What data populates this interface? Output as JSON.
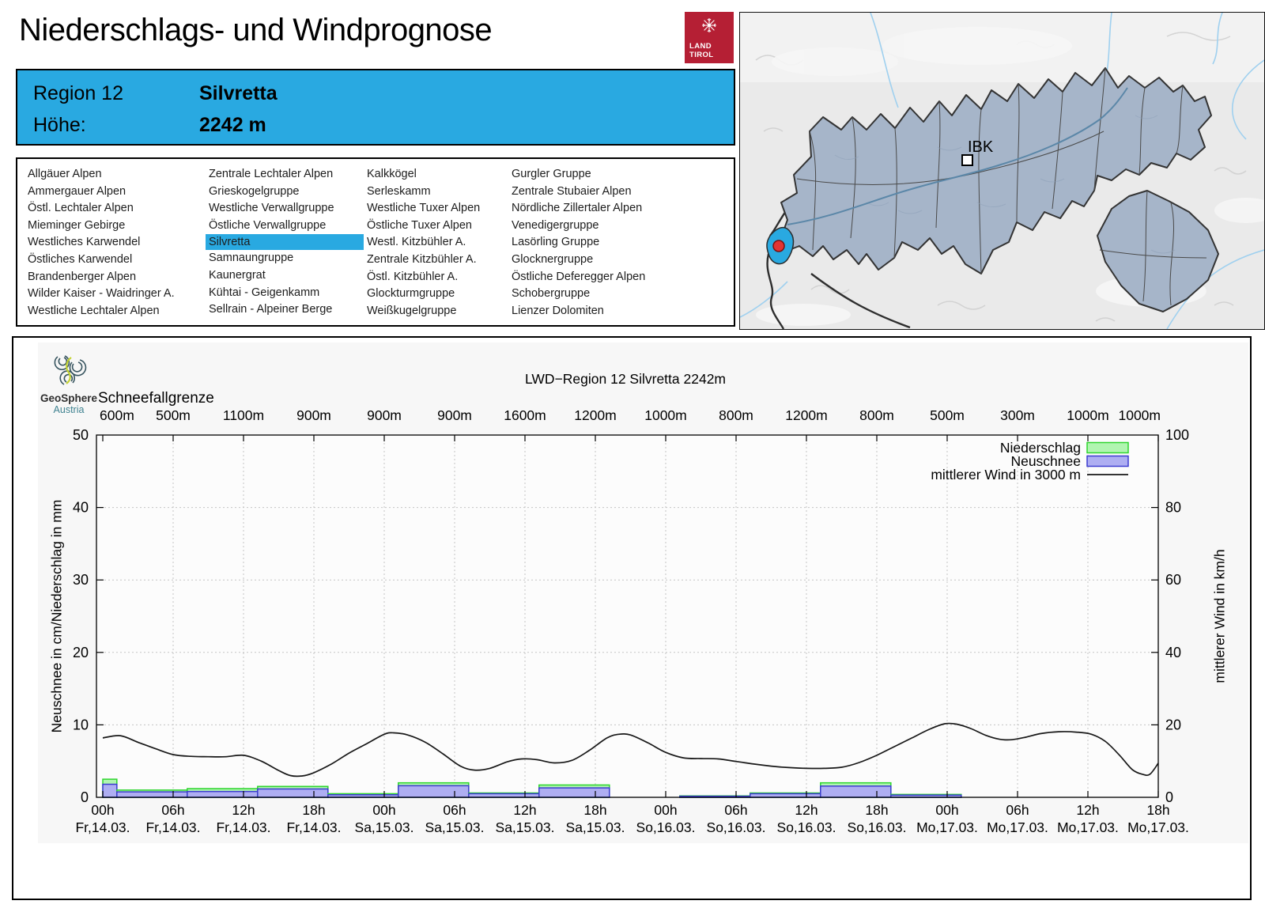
{
  "header": {
    "title": "Niederschlags- und Windprognose",
    "logo_line1": "LAND",
    "logo_line2": "TIROL"
  },
  "region_box": {
    "region_label": "Region 12",
    "region_name": "Silvretta",
    "altitude_label": "Höhe:",
    "altitude_value": "2242 m"
  },
  "region_list": {
    "selected": "Silvretta",
    "columns": [
      [
        "Allgäuer Alpen",
        "Ammergauer Alpen",
        "Östl. Lechtaler Alpen",
        "Mieminger Gebirge",
        "Westliches Karwendel",
        "Östliches Karwendel",
        "Brandenberger Alpen",
        "Wilder Kaiser - Waidringer A.",
        "Westliche Lechtaler Alpen"
      ],
      [
        "Zentrale Lechtaler Alpen",
        "Grieskogelgruppe",
        "Westliche Verwallgruppe",
        "Östliche Verwallgruppe",
        "Silvretta",
        "Samnaungruppe",
        "Kaunergrat",
        "Kühtai - Geigenkamm",
        "Sellrain - Alpeiner Berge"
      ],
      [
        "Kalkkögel",
        "Serleskamm",
        "Westliche Tuxer Alpen",
        "Östliche Tuxer Alpen",
        "Westl. Kitzbühler A.",
        "Zentrale Kitzbühler A.",
        "Östl. Kitzbühler A.",
        "Glockturmgruppe",
        "Weißkugelgruppe"
      ],
      [
        "Gurgler Gruppe",
        "Zentrale Stubaier Alpen",
        "Nördliche Zillertaler Alpen",
        "Venedigergruppe",
        "Lasörling Gruppe",
        "Glocknergruppe",
        "Östliche Deferegger Alpen",
        "Schobergruppe",
        "Lienzer Dolomiten"
      ]
    ]
  },
  "map": {
    "marker_label": "IBK",
    "highlight_color": "#29a9e1",
    "region_fill": "#a6b5c9"
  },
  "colors": {
    "accent_blue": "#29a9e1",
    "tirol_red": "#b51f34",
    "precip_fill": "#b0f5b0",
    "precip_border": "#2ed52e",
    "snow_fill": "#aeaef2",
    "snow_border": "#3c3cd0",
    "wind_line": "#181818"
  },
  "chart_data": {
    "type": "bar+line",
    "title": "LWD−Region 12 Silvretta 2242m",
    "branding_name": "GeoSphere",
    "branding_sub": "Austria",
    "snowline_label": "Schneefallgrenze",
    "snowline_values": [
      "600m",
      "500m",
      "1100m",
      "900m",
      "900m",
      "900m",
      "1600m",
      "1200m",
      "1000m",
      "800m",
      "1200m",
      "800m",
      "500m",
      "300m",
      "1000m",
      "1000m"
    ],
    "x_ticks": [
      {
        "hour": "00h",
        "date": "Fr,14.03."
      },
      {
        "hour": "06h",
        "date": "Fr,14.03."
      },
      {
        "hour": "12h",
        "date": "Fr,14.03."
      },
      {
        "hour": "18h",
        "date": "Fr,14.03."
      },
      {
        "hour": "00h",
        "date": "Sa,15.03."
      },
      {
        "hour": "06h",
        "date": "Sa,15.03."
      },
      {
        "hour": "12h",
        "date": "Sa,15.03."
      },
      {
        "hour": "18h",
        "date": "Sa,15.03."
      },
      {
        "hour": "00h",
        "date": "So,16.03."
      },
      {
        "hour": "06h",
        "date": "So,16.03."
      },
      {
        "hour": "12h",
        "date": "So,16.03."
      },
      {
        "hour": "18h",
        "date": "So,16.03."
      },
      {
        "hour": "00h",
        "date": "Mo,17.03."
      },
      {
        "hour": "06h",
        "date": "Mo,17.03."
      },
      {
        "hour": "12h",
        "date": "Mo,17.03."
      },
      {
        "hour": "18h",
        "date": "Mo,17.03."
      }
    ],
    "ylabel_left": "Neuschnee in cm/Niederschlag in mm",
    "ylabel_right": "mittlerer Wind in km/h",
    "ylim_left": [
      0,
      50
    ],
    "yticks_left": [
      0,
      10,
      20,
      30,
      40,
      50
    ],
    "ylim_right": [
      0,
      100
    ],
    "yticks_right": [
      0,
      20,
      40,
      60,
      80,
      100
    ],
    "x_range_hours": [
      0,
      90
    ],
    "grid": "dotted",
    "legend_position": "top-right",
    "legend": [
      {
        "label": "Niederschlag",
        "type": "box"
      },
      {
        "label": "Neuschnee",
        "type": "box"
      },
      {
        "label": "mittlerer Wind in 3000 m",
        "type": "line"
      }
    ],
    "bars": [
      {
        "start_h": 0,
        "end_h": 1.2,
        "niederschlag_mm": 2.5,
        "neuschnee_cm": 1.8
      },
      {
        "start_h": 1.2,
        "end_h": 7.2,
        "niederschlag_mm": 1.0,
        "neuschnee_cm": 0.75
      },
      {
        "start_h": 7.2,
        "end_h": 13.2,
        "niederschlag_mm": 1.2,
        "neuschnee_cm": 0.8
      },
      {
        "start_h": 13.2,
        "end_h": 19.2,
        "niederschlag_mm": 1.5,
        "neuschnee_cm": 1.15
      },
      {
        "start_h": 19.2,
        "end_h": 25.2,
        "niederschlag_mm": 0.5,
        "neuschnee_cm": 0.35
      },
      {
        "start_h": 25.2,
        "end_h": 31.2,
        "niederschlag_mm": 2.0,
        "neuschnee_cm": 1.6
      },
      {
        "start_h": 31.2,
        "end_h": 37.2,
        "niederschlag_mm": 0.6,
        "neuschnee_cm": 0.5
      },
      {
        "start_h": 37.2,
        "end_h": 43.2,
        "niederschlag_mm": 1.7,
        "neuschnee_cm": 1.3
      },
      {
        "start_h": 43.2,
        "end_h": 49.2,
        "niederschlag_mm": 0,
        "neuschnee_cm": 0
      },
      {
        "start_h": 49.2,
        "end_h": 55.2,
        "niederschlag_mm": 0.2,
        "neuschnee_cm": 0.15
      },
      {
        "start_h": 55.2,
        "end_h": 61.2,
        "niederschlag_mm": 0.6,
        "neuschnee_cm": 0.5
      },
      {
        "start_h": 61.2,
        "end_h": 67.2,
        "niederschlag_mm": 2.0,
        "neuschnee_cm": 1.55
      },
      {
        "start_h": 67.2,
        "end_h": 73.2,
        "niederschlag_mm": 0.4,
        "neuschnee_cm": 0.3
      },
      {
        "start_h": 73.2,
        "end_h": 79.2,
        "niederschlag_mm": 0,
        "neuschnee_cm": 0
      },
      {
        "start_h": 79.2,
        "end_h": 90,
        "niederschlag_mm": 0,
        "neuschnee_cm": 0
      }
    ],
    "wind_kmh": [
      [
        0,
        16.4
      ],
      [
        1.5,
        17.0
      ],
      [
        3,
        15.2
      ],
      [
        4.5,
        13.4
      ],
      [
        6,
        11.8
      ],
      [
        7.5,
        11.3
      ],
      [
        9,
        11.2
      ],
      [
        10.5,
        11.2
      ],
      [
        12,
        11.6
      ],
      [
        13.5,
        10.0
      ],
      [
        15,
        7.4
      ],
      [
        16,
        6.0
      ],
      [
        17,
        5.9
      ],
      [
        18,
        6.8
      ],
      [
        19.5,
        9.2
      ],
      [
        21,
        12.2
      ],
      [
        22.5,
        14.8
      ],
      [
        24,
        17.4
      ],
      [
        24.8,
        17.8
      ],
      [
        26,
        17.2
      ],
      [
        27.5,
        15.2
      ],
      [
        29,
        12.0
      ],
      [
        30.5,
        8.6
      ],
      [
        31.7,
        7.5
      ],
      [
        33,
        8.0
      ],
      [
        34.5,
        9.8
      ],
      [
        35.7,
        10.6
      ],
      [
        37,
        10.4
      ],
      [
        38.5,
        9.5
      ],
      [
        40,
        10.2
      ],
      [
        41.5,
        13.0
      ],
      [
        43,
        16.4
      ],
      [
        44,
        17.4
      ],
      [
        45,
        17.2
      ],
      [
        46.5,
        15.0
      ],
      [
        48,
        12.4
      ],
      [
        49.5,
        10.9
      ],
      [
        51,
        10.7
      ],
      [
        52.5,
        10.6
      ],
      [
        54,
        9.9
      ],
      [
        55.5,
        9.2
      ],
      [
        57,
        8.6
      ],
      [
        58.5,
        8.2
      ],
      [
        60,
        8.0
      ],
      [
        61.5,
        8.0
      ],
      [
        63,
        8.3
      ],
      [
        64.5,
        9.6
      ],
      [
        66,
        11.6
      ],
      [
        67.5,
        14.0
      ],
      [
        69,
        16.4
      ],
      [
        70.5,
        18.8
      ],
      [
        71.8,
        20.3
      ],
      [
        72.8,
        20.2
      ],
      [
        74,
        19.0
      ],
      [
        75.3,
        17.1
      ],
      [
        76.5,
        16.0
      ],
      [
        77.5,
        15.9
      ],
      [
        78.7,
        16.6
      ],
      [
        80,
        17.6
      ],
      [
        81.5,
        18.1
      ],
      [
        83,
        18.0
      ],
      [
        84.3,
        17.4
      ],
      [
        85.5,
        15.4
      ],
      [
        86.7,
        11.6
      ],
      [
        87.8,
        7.6
      ],
      [
        88.7,
        6.3
      ],
      [
        89.3,
        6.4
      ],
      [
        90,
        9.4
      ]
    ]
  }
}
